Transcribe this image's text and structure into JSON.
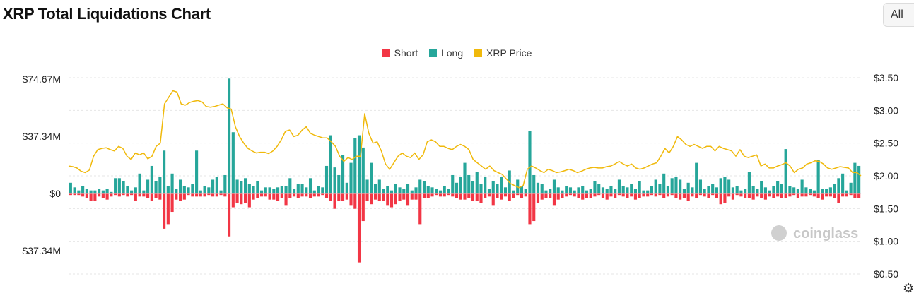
{
  "page": {
    "title": "XRP Total Liquidations Chart",
    "range_label": "All"
  },
  "colors": {
    "short": "#f23645",
    "long": "#26a69a",
    "price": "#f0b90b",
    "grid": "#e6e6e6"
  },
  "watermark": "coinglass",
  "chart_data": {
    "type": "bar",
    "legend": [
      {
        "name": "Short",
        "color": "#f23645"
      },
      {
        "name": "Long",
        "color": "#26a69a"
      },
      {
        "name": "XRP Price",
        "color": "#f0b90b"
      }
    ],
    "left_axis": {
      "ticks": [
        "$74.67M",
        "$37.34M",
        "$0",
        "$37.34M"
      ],
      "tick_values": [
        74.67,
        37.34,
        0,
        -37.34
      ],
      "range": [
        -55,
        75
      ]
    },
    "right_axis": {
      "ticks": [
        "$3.50",
        "$3.00",
        "$2.50",
        "$2.00",
        "$1.50",
        "$1.00",
        "$0.50"
      ],
      "tick_values": [
        3.5,
        3.0,
        2.5,
        2.0,
        1.5,
        1.0,
        0.5
      ],
      "range": [
        0.4,
        3.5
      ]
    },
    "grid": true,
    "legend_position": "top-center",
    "series": [
      {
        "name": "Long",
        "unit": "M USD",
        "values": [
          7,
          4,
          2,
          5,
          3,
          2,
          2,
          3,
          2,
          3,
          1,
          10,
          10,
          8,
          5,
          2,
          4,
          13,
          2,
          9,
          18,
          8,
          11,
          28,
          5,
          13,
          3,
          9,
          5,
          4,
          6,
          28,
          2,
          5,
          4,
          9,
          11,
          2,
          12,
          75,
          40,
          9,
          8,
          10,
          6,
          5,
          8,
          2,
          4,
          4,
          3,
          4,
          5,
          5,
          10,
          3,
          6,
          6,
          4,
          10,
          2,
          5,
          4,
          18,
          38,
          17,
          12,
          25,
          7,
          20,
          36,
          38,
          30,
          9,
          20,
          6,
          9,
          3,
          5,
          2,
          6,
          4,
          3,
          6,
          2,
          4,
          9,
          8,
          5,
          4,
          3,
          2,
          5,
          3,
          12,
          7,
          11,
          20,
          12,
          8,
          14,
          6,
          11,
          3,
          8,
          6,
          11,
          4,
          15,
          2,
          9,
          5,
          3,
          41,
          12,
          7,
          6,
          2,
          3,
          9,
          4,
          2,
          5,
          4,
          2,
          4,
          5,
          2,
          3,
          8,
          6,
          4,
          3,
          5,
          3,
          9,
          5,
          4,
          6,
          3,
          8,
          2,
          2,
          5,
          9,
          6,
          13,
          5,
          10,
          11,
          9,
          3,
          7,
          4,
          20,
          9,
          3,
          5,
          6,
          4,
          10,
          11,
          9,
          4,
          5,
          2,
          3,
          14,
          5,
          3,
          8,
          4,
          2,
          5,
          8,
          6,
          29,
          5,
          4,
          3,
          9,
          4,
          3,
          2,
          22,
          3,
          3,
          4,
          6,
          10,
          13,
          2,
          7,
          20,
          18
        ]
      },
      {
        "name": "Short",
        "unit": "M USD",
        "values": [
          1,
          1,
          1,
          2,
          3,
          5,
          5,
          2,
          3,
          4,
          2,
          1,
          2,
          1,
          2,
          1,
          5,
          2,
          2,
          3,
          5,
          3,
          4,
          23,
          20,
          12,
          4,
          5,
          4,
          1,
          2,
          2,
          2,
          2,
          1,
          2,
          2,
          1,
          2,
          28,
          9,
          6,
          7,
          6,
          9,
          4,
          3,
          2,
          2,
          4,
          4,
          5,
          3,
          8,
          3,
          2,
          3,
          2,
          2,
          3,
          2,
          2,
          1,
          3,
          5,
          10,
          5,
          5,
          4,
          8,
          10,
          45,
          18,
          5,
          7,
          4,
          5,
          5,
          8,
          9,
          7,
          5,
          4,
          8,
          4,
          4,
          20,
          3,
          3,
          2,
          1,
          2,
          2,
          1,
          2,
          3,
          4,
          4,
          3,
          5,
          5,
          6,
          3,
          2,
          8,
          3,
          4,
          2,
          5,
          3,
          1,
          3,
          2,
          20,
          18,
          6,
          4,
          3,
          3,
          8,
          4,
          3,
          2,
          1,
          2,
          3,
          4,
          3,
          3,
          2,
          1,
          3,
          4,
          2,
          3,
          1,
          2,
          3,
          2,
          4,
          3,
          2,
          2,
          1,
          2,
          1,
          3,
          2,
          1,
          3,
          4,
          3,
          5,
          2,
          3,
          1,
          2,
          3,
          1,
          3,
          7,
          6,
          2,
          4,
          1,
          2,
          3,
          3,
          4,
          2,
          3,
          4,
          2,
          3,
          2,
          3,
          3,
          2,
          1,
          3,
          2,
          2,
          1,
          2,
          3,
          4,
          2,
          2,
          3,
          6,
          2,
          2,
          1,
          3,
          3
        ]
      },
      {
        "name": "XRP Price",
        "unit": "USD",
        "values": [
          2.15,
          2.14,
          2.12,
          2.07,
          2.05,
          2.09,
          2.3,
          2.4,
          2.42,
          2.43,
          2.4,
          2.38,
          2.45,
          2.42,
          2.3,
          2.25,
          2.35,
          2.32,
          2.35,
          2.26,
          2.3,
          2.45,
          2.5,
          3.1,
          3.2,
          3.3,
          3.28,
          3.1,
          3.08,
          3.12,
          3.14,
          3.15,
          3.13,
          3.06,
          3.05,
          3.06,
          3.08,
          3.1,
          3.04,
          3.02,
          2.75,
          2.6,
          2.5,
          2.42,
          2.38,
          2.35,
          2.36,
          2.36,
          2.34,
          2.38,
          2.45,
          2.55,
          2.68,
          2.7,
          2.6,
          2.62,
          2.7,
          2.75,
          2.65,
          2.62,
          2.6,
          2.58,
          2.58,
          2.52,
          2.45,
          2.3,
          2.22,
          2.28,
          2.25,
          2.3,
          2.3,
          2.95,
          2.65,
          2.5,
          2.52,
          2.38,
          2.18,
          2.1,
          2.2,
          2.3,
          2.35,
          2.3,
          2.28,
          2.35,
          2.25,
          2.32,
          2.52,
          2.55,
          2.52,
          2.45,
          2.45,
          2.42,
          2.4,
          2.45,
          2.48,
          2.45,
          2.4,
          2.25,
          2.2,
          2.15,
          2.1,
          2.15,
          2.08,
          2.05,
          2.02,
          1.95,
          1.88,
          1.85,
          1.82,
          1.85,
          2.1,
          2.15,
          2.12,
          2.08,
          2.05,
          2.1,
          2.08,
          2.05,
          2.06,
          2.08,
          2.1,
          2.08,
          2.05,
          2.07,
          2.1,
          2.12,
          2.13,
          2.12,
          2.12,
          2.14,
          2.15,
          2.18,
          2.22,
          2.18,
          2.15,
          2.18,
          2.12,
          2.1,
          2.12,
          2.15,
          2.18,
          2.2,
          2.3,
          2.42,
          2.35,
          2.45,
          2.6,
          2.55,
          2.48,
          2.45,
          2.48,
          2.45,
          2.42,
          2.45,
          2.45,
          2.38,
          2.45,
          2.42,
          2.4,
          2.38,
          2.3,
          2.4,
          2.3,
          2.28,
          2.3,
          2.32,
          2.15,
          2.18,
          2.12,
          2.12,
          2.15,
          2.17,
          2.2,
          2.15,
          2.05,
          2.1,
          2.12,
          2.18,
          2.2,
          2.23,
          2.22,
          2.18,
          2.12,
          2.1,
          2.12,
          2.14,
          2.13,
          2.12,
          2.05,
          2.05,
          2.0
        ]
      }
    ]
  }
}
